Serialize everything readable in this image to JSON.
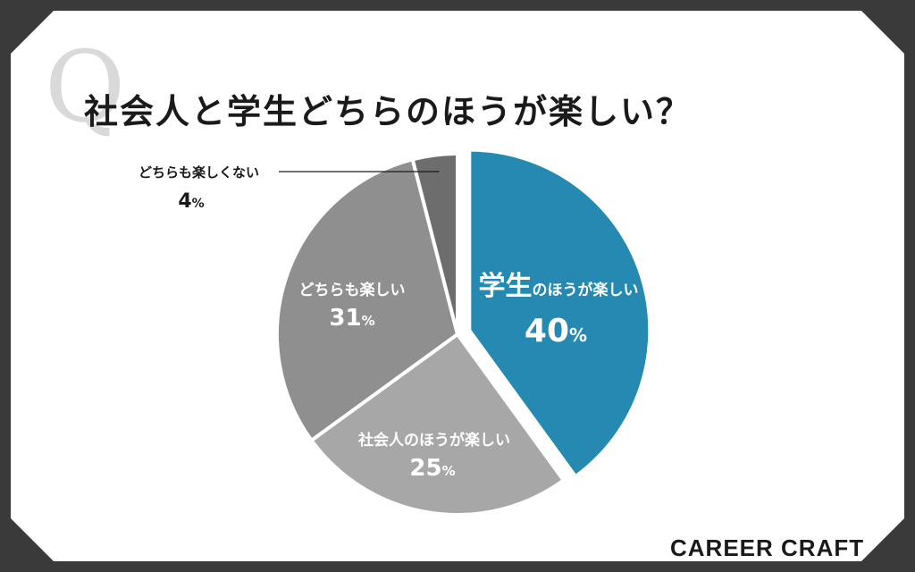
{
  "title": "社会人と学生どちらのほうが楽しい？",
  "brand": "CAREER CRAFT",
  "q_mark": "Q",
  "chart_data": {
    "type": "pie",
    "start_angle_deg": 0,
    "direction": "clockwise",
    "slices": [
      {
        "label_main": "学生",
        "label_rest": "のほうが楽しい",
        "value": 40,
        "color": "#2589b1",
        "exploded": true
      },
      {
        "label_main": "",
        "label_rest": "社会人のほうが楽しい",
        "value": 25,
        "color": "#a7a7a7",
        "exploded": false
      },
      {
        "label_main": "",
        "label_rest": "どちらも楽しい",
        "value": 31,
        "color": "#8f8f8f",
        "exploded": false
      },
      {
        "label_main": "",
        "label_rest": "どちらも楽しくない",
        "value": 4,
        "color": "#6d6d6d",
        "exploded": false
      }
    ]
  }
}
